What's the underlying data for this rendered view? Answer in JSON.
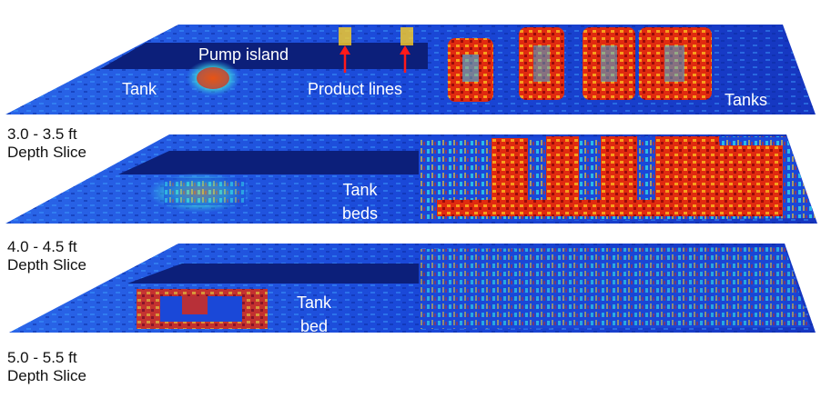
{
  "annotations": {
    "pump_island": "Pump island",
    "tank_left": "Tank",
    "product_lines": "Product lines",
    "tanks_right": "Tanks",
    "tank_beds": [
      "Tank",
      "beds"
    ],
    "tank_bed": [
      "Tank",
      "bed"
    ]
  },
  "slices": [
    {
      "depth": "3.0 - 3.5 ft",
      "caption": "Depth Slice"
    },
    {
      "depth": "4.0 - 4.5 ft",
      "caption": "Depth Slice"
    },
    {
      "depth": "5.0 - 5.5 ft",
      "caption": "Depth Slice"
    }
  ],
  "colors": {
    "background_blue": "#1a3fd0",
    "dark_band": "#0c1f7a",
    "high_anomaly": "#b01010",
    "mid_anomaly": "#ffd020",
    "low_anomaly": "#30d8e8",
    "arrow": "#ff1a1a"
  }
}
